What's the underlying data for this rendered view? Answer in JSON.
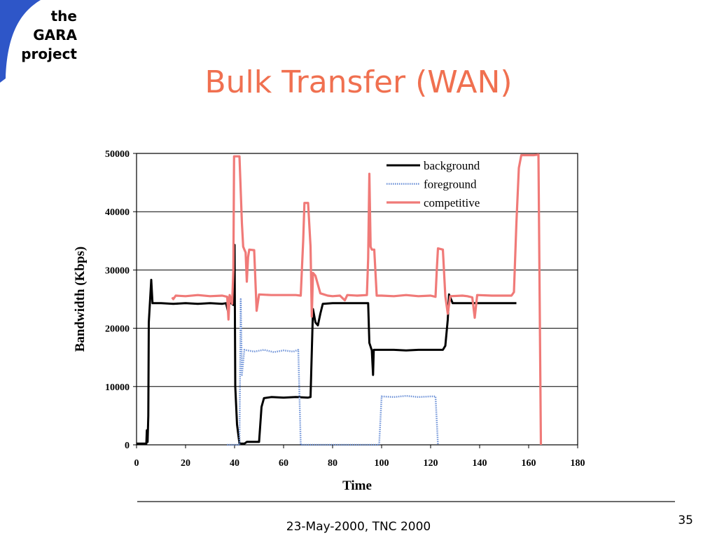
{
  "logo": {
    "line1": "the",
    "line2": "GARA",
    "line3": "project",
    "accent_color": "#2e56c8"
  },
  "slide": {
    "title": "Bulk Transfer (WAN)",
    "footer": "23-May-2000, TNC 2000",
    "page_number": "35",
    "title_color": "#f07050"
  },
  "chart_data": {
    "type": "line",
    "title": "",
    "xlabel": "Time",
    "ylabel": "Bandwidth (Kbps)",
    "xlim": [
      0,
      180
    ],
    "ylim": [
      0,
      50000
    ],
    "x_ticks": [
      "0",
      "20",
      "40",
      "60",
      "80",
      "100",
      "120",
      "140",
      "160",
      "180"
    ],
    "y_ticks": [
      "0",
      "10000",
      "20000",
      "30000",
      "40000",
      "50000"
    ],
    "grid": "horizontal",
    "legend_position": "top-right",
    "series": [
      {
        "name": "background",
        "color": "#000000",
        "style": "solid",
        "points": [
          [
            0,
            200
          ],
          [
            3,
            200
          ],
          [
            4,
            200
          ],
          [
            4.2,
            2500
          ],
          [
            4.5,
            500
          ],
          [
            4.8,
            5000
          ],
          [
            5,
            21000
          ],
          [
            6,
            28300
          ],
          [
            6.5,
            24300
          ],
          [
            10,
            24300
          ],
          [
            15,
            24200
          ],
          [
            20,
            24300
          ],
          [
            25,
            24200
          ],
          [
            30,
            24300
          ],
          [
            35,
            24200
          ],
          [
            36.5,
            24300
          ],
          [
            37.5,
            22600
          ],
          [
            38,
            25600
          ],
          [
            38.5,
            24300
          ],
          [
            39.5,
            24000
          ],
          [
            40,
            34300
          ],
          [
            40.3,
            10000
          ],
          [
            41,
            3500
          ],
          [
            42,
            200
          ],
          [
            44,
            200
          ],
          [
            45,
            500
          ],
          [
            49,
            500
          ],
          [
            50,
            500
          ],
          [
            51,
            6500
          ],
          [
            52,
            8000
          ],
          [
            55,
            8200
          ],
          [
            60,
            8100
          ],
          [
            65,
            8200
          ],
          [
            70,
            8100
          ],
          [
            71,
            8200
          ],
          [
            72,
            23300
          ],
          [
            73,
            21000
          ],
          [
            74,
            20500
          ],
          [
            75,
            22500
          ],
          [
            76,
            24200
          ],
          [
            80,
            24300
          ],
          [
            85,
            24300
          ],
          [
            90,
            24300
          ],
          [
            94.5,
            24300
          ],
          [
            95,
            17500
          ],
          [
            96,
            16200
          ],
          [
            96.5,
            12000
          ],
          [
            96.8,
            16300
          ],
          [
            100,
            16300
          ],
          [
            105,
            16300
          ],
          [
            110,
            16200
          ],
          [
            115,
            16300
          ],
          [
            120,
            16300
          ],
          [
            125,
            16300
          ],
          [
            126,
            17000
          ],
          [
            127,
            21500
          ],
          [
            127.5,
            25800
          ],
          [
            129,
            24300
          ],
          [
            135,
            24300
          ],
          [
            140,
            24300
          ],
          [
            145,
            24300
          ],
          [
            150,
            24300
          ],
          [
            155,
            24300
          ]
        ]
      },
      {
        "name": "foreground",
        "color": "#6f93d8",
        "style": "dotted",
        "points": [
          [
            37,
            0
          ],
          [
            40,
            0
          ],
          [
            42,
            0
          ],
          [
            42.5,
            25000
          ],
          [
            43,
            12000
          ],
          [
            44,
            16300
          ],
          [
            48,
            16000
          ],
          [
            52,
            16300
          ],
          [
            56,
            15900
          ],
          [
            60,
            16200
          ],
          [
            64,
            16000
          ],
          [
            66,
            16300
          ],
          [
            67,
            0
          ],
          [
            68,
            0
          ],
          [
            98,
            0
          ],
          [
            99,
            0
          ],
          [
            100,
            8300
          ],
          [
            105,
            8200
          ],
          [
            110,
            8400
          ],
          [
            115,
            8200
          ],
          [
            120,
            8300
          ],
          [
            122,
            8300
          ],
          [
            123,
            0
          ]
        ]
      },
      {
        "name": "competitive",
        "color": "#f07a78",
        "style": "solid",
        "points": [
          [
            14.5,
            25300
          ],
          [
            15,
            25000
          ],
          [
            16,
            25600
          ],
          [
            20,
            25500
          ],
          [
            25,
            25700
          ],
          [
            30,
            25500
          ],
          [
            35,
            25600
          ],
          [
            37,
            25400
          ],
          [
            37.5,
            21500
          ],
          [
            38,
            25700
          ],
          [
            39,
            24200
          ],
          [
            39.5,
            30000
          ],
          [
            39.8,
            49500
          ],
          [
            42,
            49500
          ],
          [
            43,
            38000
          ],
          [
            43.5,
            34000
          ],
          [
            44,
            33500
          ],
          [
            44.5,
            33000
          ],
          [
            45,
            28000
          ],
          [
            45.5,
            32200
          ],
          [
            46,
            33500
          ],
          [
            48,
            33400
          ],
          [
            49,
            23000
          ],
          [
            50,
            25800
          ],
          [
            55,
            25700
          ],
          [
            60,
            25700
          ],
          [
            65,
            25700
          ],
          [
            67,
            25600
          ],
          [
            68,
            35000
          ],
          [
            68.5,
            41500
          ],
          [
            70,
            41500
          ],
          [
            71,
            34000
          ],
          [
            71.5,
            22000
          ],
          [
            72,
            29500
          ],
          [
            73,
            29000
          ],
          [
            75,
            26000
          ],
          [
            78,
            25600
          ],
          [
            80,
            25500
          ],
          [
            83,
            25600
          ],
          [
            85,
            24800
          ],
          [
            86,
            25700
          ],
          [
            90,
            25600
          ],
          [
            94,
            25700
          ],
          [
            94.5,
            32000
          ],
          [
            95,
            46500
          ],
          [
            95.5,
            34000
          ],
          [
            96,
            33500
          ],
          [
            97,
            33500
          ],
          [
            98,
            25600
          ],
          [
            100,
            25600
          ],
          [
            105,
            25500
          ],
          [
            110,
            25700
          ],
          [
            115,
            25500
          ],
          [
            120,
            25600
          ],
          [
            122,
            25400
          ],
          [
            122.5,
            30000
          ],
          [
            123,
            33700
          ],
          [
            125,
            33500
          ],
          [
            126,
            25500
          ],
          [
            127,
            22500
          ],
          [
            128,
            25500
          ],
          [
            133,
            25600
          ],
          [
            135,
            25500
          ],
          [
            137,
            25300
          ],
          [
            138,
            21800
          ],
          [
            139,
            25700
          ],
          [
            145,
            25600
          ],
          [
            150,
            25600
          ],
          [
            153,
            25600
          ],
          [
            154,
            26200
          ],
          [
            155,
            38000
          ],
          [
            156,
            47500
          ],
          [
            157,
            49700
          ],
          [
            160,
            49700
          ],
          [
            162,
            49700
          ],
          [
            164,
            49800
          ],
          [
            165,
            0
          ]
        ]
      }
    ]
  }
}
